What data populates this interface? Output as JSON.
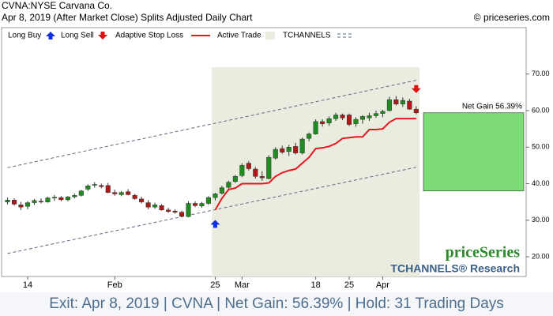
{
  "chart_data": {
    "type": "candlestick",
    "symbol": "CVNA:NYSE Carvana Co.",
    "subtitle": "Apr 8, 2019 (After Market Close)  Splits Adjusted Daily Chart",
    "copyright": "© priceseries.com",
    "legend": [
      "Long Buy",
      "Long Sell",
      "Adaptive Stop Loss",
      "Active Trade",
      "TCHANNELS"
    ],
    "brand": "priceSeries",
    "brand_sub": "TCHANNELS® Research",
    "footer": "Exit: Apr 8, 2019 | CVNA | Net Gain: 56.39% | Hold: 31 Trading Days",
    "categories": [
      null,
      null,
      null,
      "14",
      null,
      null,
      null,
      null,
      null,
      null,
      null,
      null,
      null,
      null,
      null,
      null,
      "Feb",
      null,
      null,
      null,
      null,
      null,
      null,
      null,
      null,
      null,
      null,
      null,
      null,
      null,
      null,
      "25",
      null,
      null,
      null,
      "Mar",
      null,
      null,
      null,
      null,
      null,
      null,
      null,
      null,
      null,
      null,
      "18",
      null,
      null,
      null,
      null,
      "25",
      null,
      null,
      null,
      null,
      "Apr",
      null,
      null,
      null,
      null,
      null
    ],
    "open": [
      35.0,
      35.5,
      34.2,
      33.8,
      34.8,
      35.2,
      35.0,
      36.1,
      36.2,
      35.6,
      36.4,
      36.8,
      38.5,
      39.6,
      39.5,
      39.5,
      37.6,
      37.0,
      37.8,
      36.8,
      35.8,
      34.8,
      33.6,
      34.0,
      32.8,
      32.5,
      32.2,
      31.0,
      34.6,
      33.9,
      34.6,
      36.2,
      37.4,
      39.0,
      40.6,
      42.2,
      45.6,
      44.0,
      42.0,
      41.4,
      47.0,
      49.6,
      48.8,
      50.2,
      48.4,
      52.4,
      53.6,
      57.0,
      56.6,
      57.8,
      58.8,
      58.8,
      56.4,
      57.6,
      58.0,
      58.6,
      59.2,
      60.0,
      63.0,
      61.8,
      62.6,
      60.4
    ],
    "high": [
      36.2,
      36.0,
      35.0,
      35.2,
      35.8,
      36.0,
      36.4,
      36.9,
      36.6,
      36.6,
      37.3,
      38.3,
      39.8,
      40.4,
      40.0,
      40.2,
      38.4,
      38.0,
      38.5,
      37.2,
      36.4,
      35.5,
      34.8,
      34.4,
      33.4,
      33.0,
      32.6,
      35.2,
      35.2,
      35.0,
      36.6,
      37.5,
      39.4,
      40.8,
      42.4,
      45.6,
      46.2,
      44.6,
      43.4,
      47.8,
      50.0,
      50.4,
      50.6,
      51.2,
      52.6,
      54.0,
      57.6,
      57.6,
      58.4,
      59.4,
      59.2,
      59.2,
      58.2,
      58.8,
      59.4,
      60.0,
      60.2,
      63.8,
      64.0,
      63.6,
      63.2,
      61.2
    ],
    "low": [
      34.3,
      34.0,
      32.8,
      33.0,
      34.2,
      34.6,
      34.8,
      35.3,
      35.2,
      35.2,
      36.0,
      36.5,
      38.0,
      38.9,
      38.7,
      37.4,
      36.7,
      36.6,
      36.8,
      35.6,
      34.6,
      33.0,
      33.1,
      32.6,
      32.0,
      31.8,
      30.8,
      30.8,
      33.6,
      33.4,
      34.2,
      35.4,
      37.0,
      38.6,
      40.2,
      41.8,
      43.6,
      41.4,
      40.8,
      41.2,
      46.6,
      48.2,
      47.6,
      48.0,
      48.0,
      51.6,
      53.4,
      55.6,
      55.8,
      57.2,
      57.4,
      55.8,
      55.6,
      56.4,
      57.2,
      58.0,
      58.2,
      59.8,
      61.4,
      61.0,
      60.2,
      59.0
    ],
    "close": [
      35.5,
      34.4,
      33.6,
      34.8,
      35.4,
      35.0,
      36.1,
      36.3,
      35.6,
      36.4,
      36.8,
      38.0,
      39.4,
      39.8,
      39.2,
      37.6,
      37.2,
      37.6,
      37.0,
      35.9,
      35.0,
      33.6,
      34.2,
      32.8,
      32.4,
      32.2,
      31.1,
      34.6,
      34.0,
      34.6,
      36.2,
      37.2,
      38.9,
      40.4,
      42.0,
      45.0,
      44.1,
      42.0,
      41.6,
      47.2,
      49.4,
      48.6,
      50.0,
      48.4,
      52.2,
      53.6,
      57.0,
      56.4,
      57.8,
      58.8,
      58.0,
      56.2,
      57.6,
      58.4,
      58.6,
      59.2,
      59.8,
      63.0,
      61.8,
      62.8,
      60.4,
      59.4
    ],
    "stop_loss": [
      null,
      null,
      null,
      null,
      null,
      null,
      null,
      null,
      null,
      null,
      null,
      null,
      null,
      null,
      null,
      null,
      null,
      null,
      null,
      null,
      null,
      null,
      null,
      null,
      null,
      null,
      null,
      null,
      null,
      null,
      null,
      32.8,
      36.0,
      38.4,
      38.8,
      40.0,
      40.0,
      40.0,
      40.0,
      40.2,
      42.0,
      43.0,
      43.6,
      44.0,
      45.6,
      47.2,
      49.6,
      49.8,
      50.2,
      51.0,
      52.4,
      52.6,
      52.8,
      52.8,
      54.8,
      54.8,
      55.0,
      56.8,
      57.8,
      57.8,
      57.8,
      57.8
    ],
    "long_buy": [
      null,
      null,
      null,
      null,
      null,
      null,
      null,
      null,
      null,
      null,
      null,
      null,
      null,
      null,
      null,
      null,
      null,
      null,
      null,
      null,
      null,
      null,
      null,
      null,
      null,
      null,
      null,
      null,
      null,
      null,
      null,
      29.0,
      null,
      null,
      null,
      null,
      null,
      null,
      null,
      null,
      null,
      null,
      null,
      null,
      null,
      null,
      null,
      null,
      null,
      null,
      null,
      null,
      null,
      null,
      null,
      null,
      null,
      null,
      null,
      null,
      null,
      null
    ],
    "long_sell": [
      null,
      null,
      null,
      null,
      null,
      null,
      null,
      null,
      null,
      null,
      null,
      null,
      null,
      null,
      null,
      null,
      null,
      null,
      null,
      null,
      null,
      null,
      null,
      null,
      null,
      null,
      null,
      null,
      null,
      null,
      null,
      null,
      null,
      null,
      null,
      null,
      null,
      null,
      null,
      null,
      null,
      null,
      null,
      null,
      null,
      null,
      null,
      null,
      null,
      null,
      null,
      null,
      null,
      null,
      null,
      null,
      null,
      null,
      null,
      null,
      null,
      65.9
    ],
    "channel_upper": [
      44.4,
      68.3
    ],
    "channel_lower": [
      20.9,
      44.5
    ],
    "net_gain": {
      "label": "Net Gain 56.39%",
      "entry": 38.0,
      "exit": 59.4
    },
    "colors": {
      "up": "#1e8c1e",
      "down": "#b01818",
      "stop": "#e8141e",
      "buy": "#1030e0",
      "sell": "#e01010",
      "trade": "#e9ecdf",
      "channel": "#5a6a80",
      "gain": "#7ddc78"
    },
    "ylim": [
      14.6,
      82.7
    ],
    "yticks": [
      {
        "value": 20,
        "label": "20.00"
      },
      {
        "value": 30,
        "label": "30.00"
      },
      {
        "value": 40,
        "label": "40.00"
      },
      {
        "value": 50,
        "label": "50.00"
      },
      {
        "value": 60,
        "label": "60.00"
      },
      {
        "value": 70,
        "label": "70.00"
      }
    ]
  }
}
